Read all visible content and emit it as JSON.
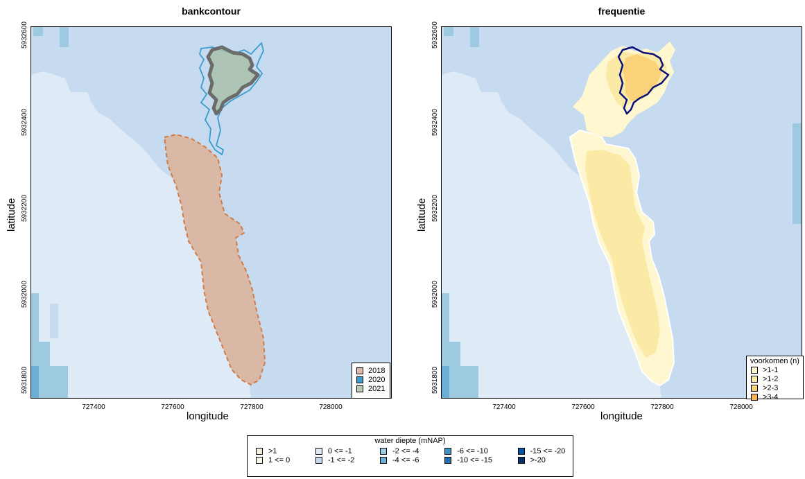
{
  "left_map": {
    "title": "bankcontour",
    "xlabel": "longitude",
    "ylabel": "latitude",
    "x_ticks": [
      "727400",
      "727600",
      "727800",
      "728000"
    ],
    "y_ticks": [
      "5932600",
      "5932400",
      "5932200",
      "5932000",
      "5931800"
    ],
    "legend": {
      "items": [
        {
          "label": "2018",
          "color": "#d9b8a5"
        },
        {
          "label": "2020",
          "color": "#3a9bcf"
        },
        {
          "label": "2021",
          "color": "#b7c7b0"
        }
      ]
    }
  },
  "right_map": {
    "title": "frequentie",
    "xlabel": "longitude",
    "ylabel": "latitude",
    "x_ticks": [
      "727400",
      "727600",
      "727800",
      "728000"
    ],
    "y_ticks": [
      "5932600",
      "5932400",
      "5932200",
      "5932000",
      "5931800"
    ],
    "legend": {
      "title": "voorkomen (n)",
      "items": [
        {
          "label": ">1-1",
          "color": "#fff7cf"
        },
        {
          "label": ">1-2",
          "color": "#fbe9a6"
        },
        {
          "label": ">2-3",
          "color": "#fad27a"
        },
        {
          "label": ">3-4",
          "color": "#f7b454"
        }
      ]
    }
  },
  "depth_legend": {
    "title": "water diepte (mNAP)",
    "columns": [
      [
        {
          "label": ">1",
          "color": "#f2efdc"
        },
        {
          "label": "1 <= 0",
          "color": "#faf7e8"
        }
      ],
      [
        {
          "label": "0 <= -1",
          "color": "#deebf7"
        },
        {
          "label": "-1 <= -2",
          "color": "#c6dbef"
        }
      ],
      [
        {
          "label": "-2 <= -4",
          "color": "#9ecae1"
        },
        {
          "label": "-4 <= -6",
          "color": "#6baed6"
        }
      ],
      [
        {
          "label": "-6 <= -10",
          "color": "#4292c6"
        },
        {
          "label": "-10 <= -15",
          "color": "#2171b5"
        }
      ],
      [
        {
          "label": "-15 <= -20",
          "color": "#08519c"
        },
        {
          "label": ">-20",
          "color": "#08306b"
        }
      ]
    ]
  }
}
